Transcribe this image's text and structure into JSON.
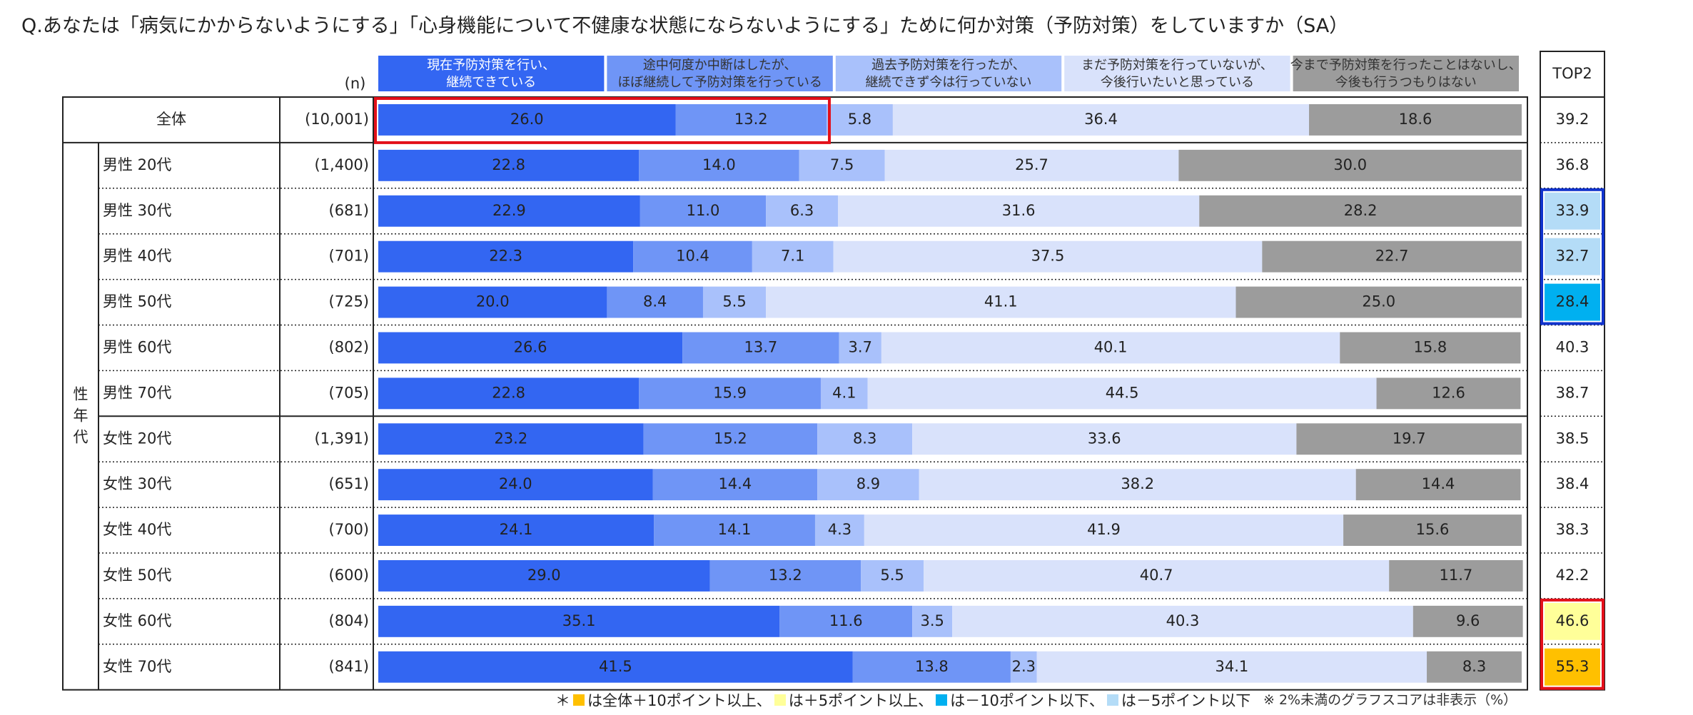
{
  "question": "Q.あなたは「病気にかからないようにする」「心身機能について不健康な状態にならないようにする」ために何か対策（予防対策）をしていますか（SA）",
  "n_header": "(n)",
  "group_label": "性年代",
  "top2_header": "TOP2",
  "colors": {
    "s1": "#3366f2",
    "s2": "#6f95f6",
    "s3": "#a9c1fb",
    "s4": "#d9e2fb",
    "s5": "#9c9c9c",
    "highlight_red": "#e3101a",
    "highlight_blue": "#1133cc",
    "plus10": "#ffc000",
    "plus5": "#ffff99",
    "minus10": "#00b0f0",
    "minus5": "#b4dcf7"
  },
  "chart_data": {
    "type": "stacked-bar-100",
    "title": "Q.あなたは「病気にかからないようにする」「心身機能について不健康な状態にならないようにする」ために何か対策（予防対策）をしていますか（SA）",
    "xlim": [
      0,
      100
    ],
    "unit": "%",
    "series": [
      {
        "name": "現在予防対策を行い、継続できている",
        "legend_lines": [
          "現在予防対策を行い、",
          "継続できている"
        ],
        "values": [
          26.0,
          22.8,
          22.9,
          22.3,
          20.0,
          26.6,
          22.8,
          23.2,
          24.0,
          24.1,
          29.0,
          35.1,
          41.5
        ]
      },
      {
        "name": "途中何度か中断はしたが、ほぼ継続して予防対策を行っている",
        "legend_lines": [
          "途中何度か中断はしたが、",
          "ほぼ継続して予防対策を行っている"
        ],
        "values": [
          13.2,
          14.0,
          11.0,
          10.4,
          8.4,
          13.7,
          15.9,
          15.2,
          14.4,
          14.1,
          13.2,
          11.6,
          13.8
        ]
      },
      {
        "name": "過去予防対策を行ったが、継続できず今は行っていない",
        "legend_lines": [
          "過去予防対策を行ったが、",
          "継続できず今は行っていない"
        ],
        "values": [
          5.8,
          7.5,
          6.3,
          7.1,
          5.5,
          3.7,
          4.1,
          8.3,
          8.9,
          4.3,
          5.5,
          3.5,
          2.3
        ]
      },
      {
        "name": "まだ予防対策を行っていないが、今後行いたいと思っている",
        "legend_lines": [
          "まだ予防対策を行っていないが、",
          "今後行いたいと思っている"
        ],
        "values": [
          36.4,
          25.7,
          31.6,
          37.5,
          41.1,
          40.1,
          44.5,
          33.6,
          38.2,
          41.9,
          40.7,
          40.3,
          34.1
        ]
      },
      {
        "name": "今まで予防対策を行ったことはないし、今後も行うつもりはない",
        "legend_lines": [
          "今まで予防対策を行ったことはないし、",
          "今後も行うつもりはない"
        ],
        "values": [
          18.6,
          30.0,
          28.2,
          22.7,
          25.0,
          15.8,
          12.6,
          19.7,
          14.4,
          15.6,
          11.7,
          9.6,
          8.3
        ]
      }
    ],
    "rows": [
      {
        "label": "全体",
        "n": "(10,001)",
        "top2": "39.2",
        "mark": ""
      },
      {
        "label": "男性 20代",
        "n": "(1,400)",
        "top2": "36.8",
        "mark": ""
      },
      {
        "label": "男性 30代",
        "n": "(681)",
        "top2": "33.9",
        "mark": "minus5"
      },
      {
        "label": "男性 40代",
        "n": "(701)",
        "top2": "32.7",
        "mark": "minus5"
      },
      {
        "label": "男性 50代",
        "n": "(725)",
        "top2": "28.4",
        "mark": "minus10"
      },
      {
        "label": "男性 60代",
        "n": "(802)",
        "top2": "40.3",
        "mark": ""
      },
      {
        "label": "男性 70代",
        "n": "(705)",
        "top2": "38.7",
        "mark": ""
      },
      {
        "label": "女性 20代",
        "n": "(1,391)",
        "top2": "38.5",
        "mark": ""
      },
      {
        "label": "女性 30代",
        "n": "(651)",
        "top2": "38.4",
        "mark": ""
      },
      {
        "label": "女性 40代",
        "n": "(700)",
        "top2": "38.3",
        "mark": ""
      },
      {
        "label": "女性 50代",
        "n": "(600)",
        "top2": "42.2",
        "mark": ""
      },
      {
        "label": "女性 60代",
        "n": "(804)",
        "top2": "46.6",
        "mark": "plus5"
      },
      {
        "label": "女性 70代",
        "n": "(841)",
        "top2": "55.3",
        "mark": "plus10"
      }
    ]
  },
  "footnote": {
    "prefix": "＊",
    "items": [
      {
        "color_key": "plus10",
        "text": "は全体＋10ポイント以上、"
      },
      {
        "color_key": "plus5",
        "text": "は＋5ポイント以上、"
      },
      {
        "color_key": "minus10",
        "text": "は－10ポイント以下、"
      },
      {
        "color_key": "minus5",
        "text": "は－5ポイント以下"
      }
    ],
    "note": "※ 2%未満のグラフスコアは非表示（%）"
  }
}
